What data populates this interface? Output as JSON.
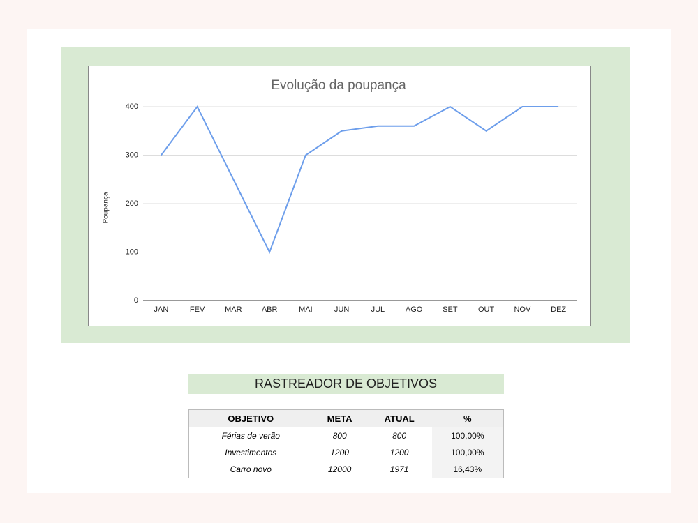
{
  "chart_data": {
    "type": "line",
    "title": "Evolução da poupança",
    "y_label": "Poupança",
    "categories": [
      "JAN",
      "FEV",
      "MAR",
      "ABR",
      "MAI",
      "JUN",
      "JUL",
      "AGO",
      "SET",
      "OUT",
      "NOV",
      "DEZ"
    ],
    "series": [
      {
        "name": "Poupança",
        "color": "#6d9eeb",
        "values": [
          300,
          400,
          250,
          100,
          300,
          350,
          360,
          360,
          400,
          350,
          400,
          400
        ]
      }
    ],
    "ylim": [
      0,
      400
    ],
    "yticks": [
      0,
      100,
      200,
      300,
      400
    ],
    "grid": true
  },
  "table": {
    "title": "RASTREADOR DE OBJETIVOS",
    "headers": [
      "OBJETIVO",
      "META",
      "ATUAL",
      "%"
    ],
    "rows": [
      [
        "Férias de verão",
        "800",
        "800",
        "100,00%"
      ],
      [
        "Investimentos",
        "1200",
        "1200",
        "100,00%"
      ],
      [
        "Carro novo",
        "12000",
        "1971",
        "16,43%"
      ]
    ]
  }
}
